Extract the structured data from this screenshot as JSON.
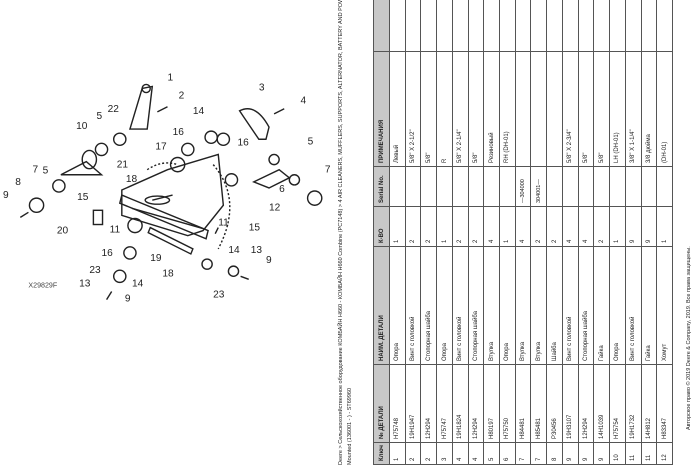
{
  "header": {
    "breadcrumb": "Deere > Сельскохозяйственное оборудование КОМБАЙН H660 - КОМБАЙН H660 Combine (PC7148) > 4 AIR CLEANERS, MUFFLERS, SUPPORTS, ALTERNATOR, BATTERY AND POWERSHIFT > Engine Supports",
    "subline": "Mounted (136001 - ) - ST69960"
  },
  "diagram": {
    "figure_id": "X29829F",
    "callouts": [
      "1",
      "2",
      "3",
      "4",
      "5",
      "5",
      "5",
      "6",
      "7",
      "7",
      "8",
      "9",
      "9",
      "9",
      "10",
      "11",
      "11",
      "12",
      "13",
      "13",
      "14",
      "14",
      "14",
      "15",
      "15",
      "16",
      "16",
      "16",
      "17",
      "18",
      "18",
      "19",
      "20",
      "21",
      "22",
      "23",
      "23"
    ]
  },
  "table": {
    "columns": [
      "Ключ",
      "№ ДЕТАЛИ",
      "НАИМ. ДЕТАЛИ",
      "К-ВО",
      "Serial No.",
      "ПРИМЕЧАНИЯ",
      ""
    ],
    "rows": [
      {
        "key": "1",
        "part": "H75748",
        "name": "Опора",
        "qty": "1",
        "serial": "",
        "note": "Левый"
      },
      {
        "key": "2",
        "part": "19H1947",
        "name": "Винт с головкой",
        "qty": "2",
        "serial": "",
        "note": "5/8\" X 2-1/2\""
      },
      {
        "key": "2",
        "part": "12H294",
        "name": "Стопорная шайба",
        "qty": "2",
        "serial": "",
        "note": "5/8\""
      },
      {
        "key": "3",
        "part": "H75747",
        "name": "Опора",
        "qty": "1",
        "serial": "",
        "note": "R"
      },
      {
        "key": "4",
        "part": "19H1824",
        "name": "Винт с головкой",
        "qty": "2",
        "serial": "",
        "note": "5/8\" X 2-1/4\""
      },
      {
        "key": "4",
        "part": "12H294",
        "name": "Стопорная шайба",
        "qty": "2",
        "serial": "",
        "note": "5/8\""
      },
      {
        "key": "5",
        "part": "H80197",
        "name": "Втулка",
        "qty": "4",
        "serial": "",
        "note": "Резиновый"
      },
      {
        "key": "6",
        "part": "H75750",
        "name": "Опора",
        "qty": "1",
        "serial": "",
        "note": "RH (DH-01)"
      },
      {
        "key": "7",
        "part": "H84481",
        "name": "Втулка",
        "qty": "4",
        "serial": "—304000",
        "note": ""
      },
      {
        "key": "7",
        "part": "H85481",
        "name": "Втулка",
        "qty": "2",
        "serial": "304001—",
        "note": ""
      },
      {
        "key": "8",
        "part": "P30456",
        "name": "Шайба",
        "qty": "2",
        "serial": "",
        "note": ""
      },
      {
        "key": "9",
        "part": "19H3107",
        "name": "Винт с головкой",
        "qty": "4",
        "serial": "",
        "note": "5/8\" X 2-3/4\""
      },
      {
        "key": "9",
        "part": "12H294",
        "name": "Стопорная шайба",
        "qty": "4",
        "serial": "",
        "note": "5/8\""
      },
      {
        "key": "9",
        "part": "14H1039",
        "name": "Гайка",
        "qty": "2",
        "serial": "",
        "note": "5/8\""
      },
      {
        "key": "10",
        "part": "H75754",
        "name": "Опора",
        "qty": "1",
        "serial": "",
        "note": "LH (DH-01)"
      },
      {
        "key": "11",
        "part": "19H1732",
        "name": "Винт с головкой",
        "qty": "9",
        "serial": "",
        "note": "3/8\" X 1-1/4\""
      },
      {
        "key": "11",
        "part": "14H812",
        "name": "Гайка",
        "qty": "9",
        "serial": "",
        "note": "3/8 дюйма"
      },
      {
        "key": "12",
        "part": "H83347",
        "name": "Хомут",
        "qty": "1",
        "serial": "",
        "note": "(DH-01)"
      }
    ]
  },
  "footer": {
    "copyright": "Авторское право © 2019 Deere & Company, 2019. Все права защищены."
  }
}
